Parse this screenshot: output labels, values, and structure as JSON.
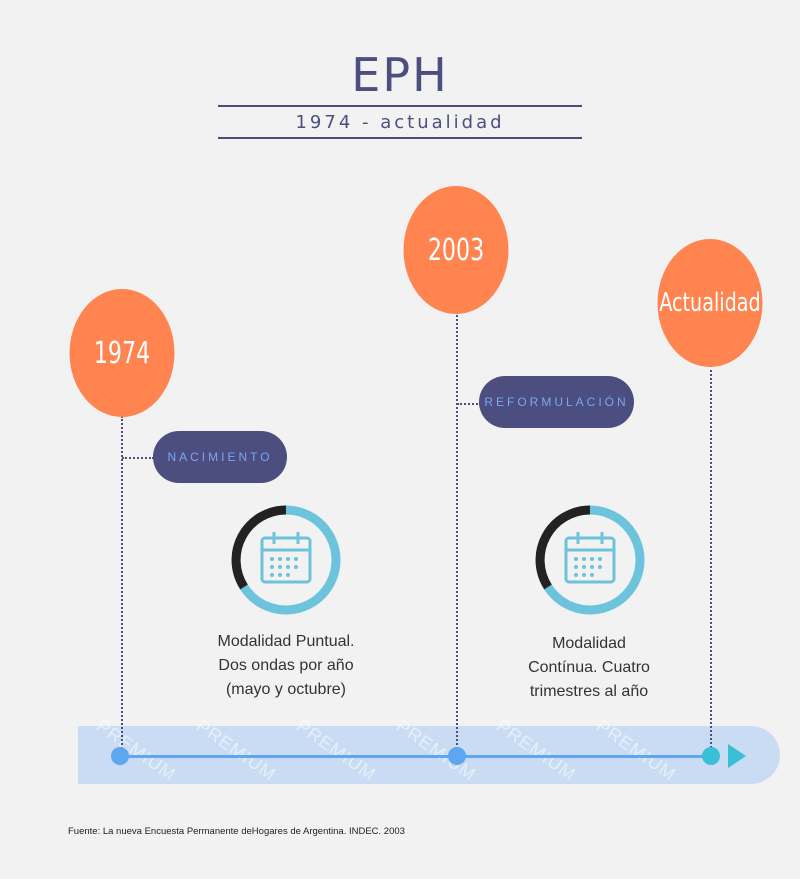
{
  "header": {
    "title": "EPH",
    "subtitle": "1974 - actualidad"
  },
  "milestones": [
    {
      "year": "1974",
      "label": "NACIMIENTO",
      "description": [
        "Modalidad Puntual.",
        "Dos ondas por año",
        "(mayo y octubre)"
      ]
    },
    {
      "year": "2003",
      "label": "REFORMULACIÓN",
      "description": [
        "Modalidad",
        "Contínua. Cuatro",
        "trimestres al año"
      ]
    },
    {
      "year": "Actualidad"
    }
  ],
  "footer": {
    "source": "Fuente: La nueva Encuesta Permanente deHogares de Argentina. INDEC. 2003"
  },
  "colors": {
    "accent": "#ff8450",
    "navy": "#4b4e7e",
    "timeline": "#5fa6f0",
    "icon": "#6cc3db"
  },
  "icons": [
    "calendar-icon",
    "calendar-icon"
  ]
}
